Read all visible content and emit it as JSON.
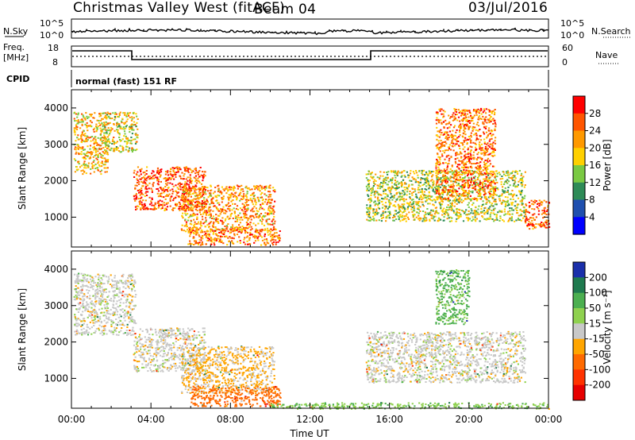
{
  "header": {
    "station": "Christmas Valley West (fitACF)",
    "beam": "Beam 04",
    "date": "03/Jul/2016",
    "cpid_label": "CPID",
    "mode": "normal (fast) 151 RF"
  },
  "noise_panel": {
    "left_label": "N.Sky",
    "right_label": "N.Search",
    "ticks": [
      "10^5",
      "10^0"
    ]
  },
  "freq_panel": {
    "left_label_1": "Freq.",
    "left_label_2": "[MHz]",
    "left_ticks": [
      "18",
      "8"
    ],
    "right_label": "Nave",
    "right_ticks": [
      "60",
      "0"
    ]
  },
  "chart_data": [
    {
      "type": "heatmap",
      "parameter": "Power",
      "ylabel": "Slant Range [km]",
      "xlabel": "",
      "colorbar_label": "Power [dB]",
      "colorbar_ticks": [
        "28",
        "24",
        "20",
        "16",
        "12",
        "8",
        "4"
      ],
      "colors": [
        "#ff0000",
        "#ff5500",
        "#ff9900",
        "#ffd000",
        "#7ac943",
        "#2e8b57",
        "#1f4fae",
        "#0000ff"
      ],
      "xlim": [
        0,
        24
      ],
      "ylim": [
        180,
        4500
      ],
      "yticks": [
        "1000",
        "2000",
        "3000",
        "4000"
      ],
      "xticks": [],
      "echo_regions": [
        {
          "t": [
            0.1,
            1.8
          ],
          "r": [
            2200,
            3900
          ],
          "power_db": 20
        },
        {
          "t": [
            1.6,
            3.3
          ],
          "r": [
            2800,
            3900
          ],
          "power_db": 18
        },
        {
          "t": [
            3.1,
            6.7
          ],
          "r": [
            1200,
            2400
          ],
          "power_db": 26
        },
        {
          "t": [
            5.5,
            10.2
          ],
          "r": [
            600,
            1900
          ],
          "power_db": 22
        },
        {
          "t": [
            5.8,
            10.5
          ],
          "r": [
            250,
            700
          ],
          "power_db": 24
        },
        {
          "t": [
            14.8,
            22.8
          ],
          "r": [
            900,
            2300
          ],
          "power_db": 16
        },
        {
          "t": [
            18.3,
            21.3
          ],
          "r": [
            1500,
            4000
          ],
          "power_db": 24
        },
        {
          "t": [
            22.8,
            24.0
          ],
          "r": [
            700,
            1500
          ],
          "power_db": 26
        }
      ]
    },
    {
      "type": "heatmap",
      "parameter": "Velocity",
      "ylabel": "Slant Range [km]",
      "xlabel": "Time UT",
      "colorbar_label": "Velocity [m s⁻¹]",
      "colorbar_ticks": [
        "200",
        "100",
        "50",
        "15",
        "-15",
        "-50",
        "-100",
        "-200"
      ],
      "colors": [
        "#1a2faa",
        "#1f7a4f",
        "#4caf50",
        "#8fd14f",
        "#c8c8c8",
        "#ffa500",
        "#ff6a00",
        "#ff3300",
        "#e60000"
      ],
      "xlim": [
        0,
        24
      ],
      "ylim": [
        180,
        4500
      ],
      "yticks": [
        "1000",
        "2000",
        "3000",
        "4000"
      ],
      "xticks": [
        "00:00",
        "04:00",
        "08:00",
        "12:00",
        "16:00",
        "20:00",
        "00:00"
      ],
      "echo_regions": [
        {
          "t": [
            0.1,
            3.2
          ],
          "r": [
            2200,
            3900
          ],
          "velocity": 0
        },
        {
          "t": [
            3.1,
            6.7
          ],
          "r": [
            1200,
            2400
          ],
          "velocity": 0
        },
        {
          "t": [
            5.5,
            10.2
          ],
          "r": [
            600,
            1900
          ],
          "velocity": -20
        },
        {
          "t": [
            6.0,
            10.5
          ],
          "r": [
            250,
            800
          ],
          "velocity": -80
        },
        {
          "t": [
            14.8,
            22.8
          ],
          "r": [
            900,
            2300
          ],
          "velocity": 0
        },
        {
          "t": [
            18.3,
            20.0
          ],
          "r": [
            2500,
            4000
          ],
          "velocity": 60
        },
        {
          "t": [
            10.0,
            24.0
          ],
          "r": [
            180,
            350
          ],
          "velocity": 40
        }
      ]
    }
  ]
}
